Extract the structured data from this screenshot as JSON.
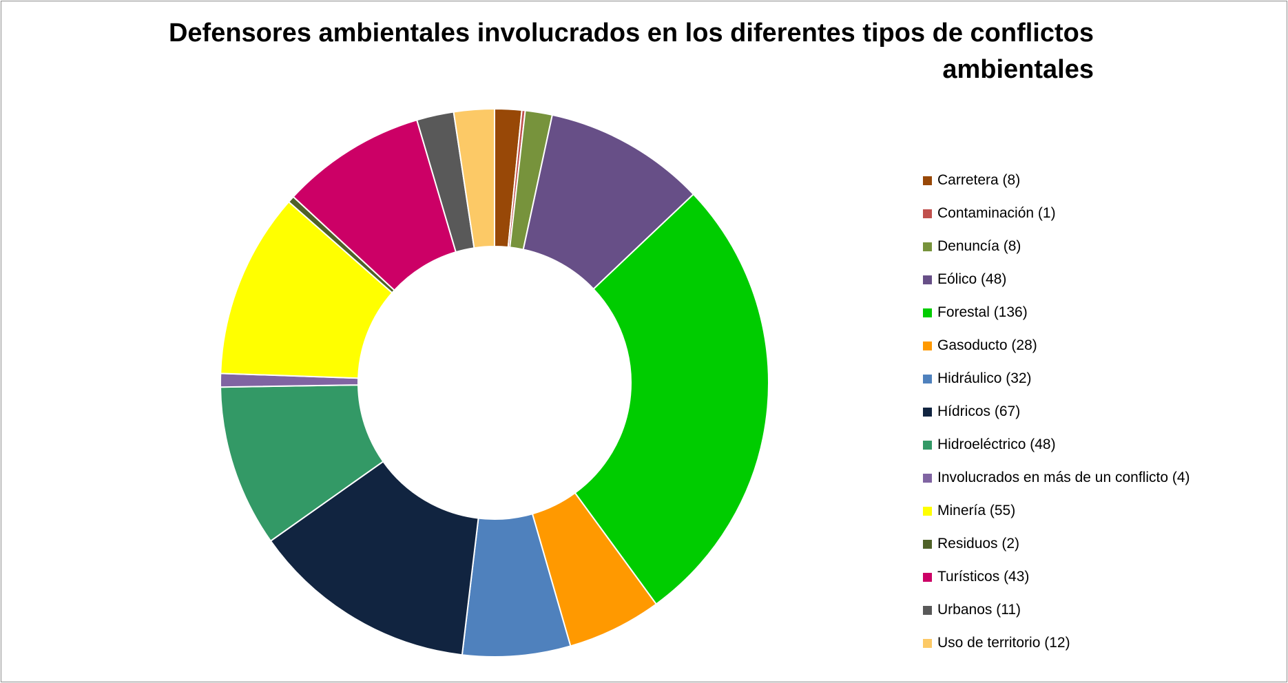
{
  "chart_data": {
    "type": "pie",
    "subtype": "donut",
    "title": "Defensores ambientales involucrados en los diferentes tipos de conflictos ambientales",
    "legend_position": "right",
    "slices": [
      {
        "label": "Carretera (8)",
        "value": 8,
        "color": "#984807"
      },
      {
        "label": "Contaminación (1)",
        "value": 1,
        "color": "#c0504d"
      },
      {
        "label": "Denuncía (8)",
        "value": 8,
        "color": "#77933c"
      },
      {
        "label": "Eólico (48)",
        "value": 48,
        "color": "#674f87"
      },
      {
        "label": "Forestal (136)",
        "value": 136,
        "color": "#00cc00"
      },
      {
        "label": "Gasoducto (28)",
        "value": 28,
        "color": "#ff9900"
      },
      {
        "label": "Hidráulico (32)",
        "value": 32,
        "color": "#4f81bd"
      },
      {
        "label": "Hídricos (67)",
        "value": 67,
        "color": "#112440"
      },
      {
        "label": "Hidroeléctrico (48)",
        "value": 48,
        "color": "#339966"
      },
      {
        "label": "Involucrados en más de un conflicto (4)",
        "value": 4,
        "color": "#8064a2"
      },
      {
        "label": "Minería (55)",
        "value": 55,
        "color": "#ffff00"
      },
      {
        "label": "Residuos (2)",
        "value": 2,
        "color": "#4f6228"
      },
      {
        "label": "Turísticos (43)",
        "value": 43,
        "color": "#cc0066"
      },
      {
        "label": "Urbanos (11)",
        "value": 11,
        "color": "#595959"
      },
      {
        "label": "Uso de territorio (12)",
        "value": 12,
        "color": "#fcc966"
      }
    ]
  }
}
